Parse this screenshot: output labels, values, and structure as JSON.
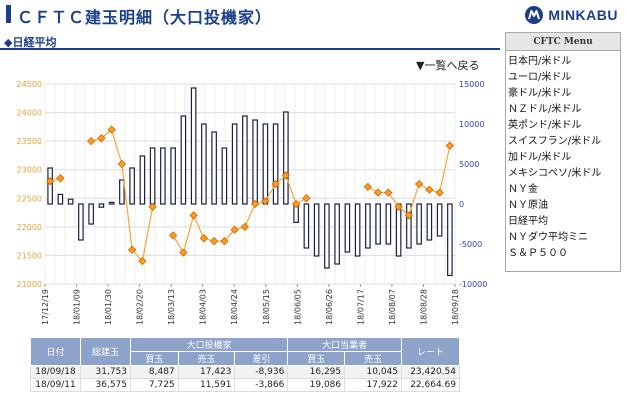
{
  "header": {
    "title": "ＣＦＴＣ建玉明細（大口投機家）",
    "logo_text": "MINKABU"
  },
  "section": {
    "label": "◆日経平均"
  },
  "list_link": "▼一覧へ戻る",
  "menu": {
    "title": "CFTC Menu",
    "items": [
      "日本円/米ドル",
      "ユーロ/米ドル",
      "豪ドル/米ドル",
      "ＮＺドル/米ドル",
      "英ポンド/米ドル",
      "スイスフラン/米ドル",
      "加ドル/米ドル",
      "メキシコペソ/米ドル",
      "ＮＹ金",
      "ＮＹ原油",
      "日経平均",
      "ＮＹダウ平均ミニ",
      "Ｓ＆Ｐ５００"
    ]
  },
  "colors": {
    "brand": "#1b3f8b",
    "left_axis": "#e6a23c",
    "right_axis": "#2a3fbf",
    "line": "#f2a73b",
    "bar_fill": "#ffffff",
    "bar_stroke": "#1a2040",
    "table_header": "#8ea3c9"
  },
  "chart_data": {
    "type": "bar",
    "x_tick_labels": [
      "17/12/19",
      "18/01/09",
      "18/01/30",
      "18/02/20",
      "18/03/13",
      "18/04/03",
      "18/04/24",
      "18/05/15",
      "18/06/05",
      "18/06/26",
      "18/07/17",
      "18/08/07",
      "18/08/28",
      "18/09/18"
    ],
    "series": [
      {
        "type": "bar",
        "axis": "right",
        "values": [
          4500,
          1200,
          600,
          -4500,
          -2500,
          -400,
          200,
          3000,
          4500,
          6000,
          7000,
          7000,
          7000,
          11000,
          14500,
          10000,
          9000,
          7000,
          10000,
          11000,
          10500,
          10000,
          10000,
          11500,
          -2300,
          -5500,
          -6500,
          -8000,
          -7500,
          -6000,
          -6500,
          -5500,
          -5000,
          -5000,
          -6500,
          -5500,
          -5000,
          -4500,
          -4000,
          -8936
        ]
      },
      {
        "type": "line",
        "axis": "left",
        "values": [
          22800,
          22850,
          null,
          null,
          23500,
          23550,
          23700,
          23100,
          21600,
          21400,
          22350,
          null,
          21850,
          21550,
          22200,
          21800,
          21750,
          21750,
          21950,
          22000,
          22400,
          22450,
          22750,
          22900,
          22400,
          22500,
          null,
          null,
          null,
          null,
          null,
          22700,
          22600,
          22600,
          22350,
          22200,
          22750,
          22650,
          22600,
          23420.54
        ]
      }
    ],
    "left_axis": {
      "min": 21000,
      "max": 24500,
      "ticks": [
        "21000",
        "21500",
        "22000",
        "22500",
        "23000",
        "23500",
        "24000",
        "24500"
      ]
    },
    "right_axis": {
      "min": -10000,
      "max": 15000,
      "ticks": [
        "-10000",
        "-5000",
        "0",
        "5000",
        "10000",
        "15000"
      ]
    },
    "grid": true
  },
  "table": {
    "headers_top": [
      "日付",
      "総建玉",
      "大口投機家",
      "大口当業者",
      "レート"
    ],
    "headers_sub": [
      "買玉",
      "売玉",
      "差引",
      "買玉",
      "売玉"
    ],
    "rows": [
      [
        "18/09/18",
        "31,753",
        "8,487",
        "17,423",
        "-8,936",
        "16,295",
        "10,045",
        "23,420.54"
      ],
      [
        "18/09/11",
        "36,575",
        "7,725",
        "11,591",
        "-3,866",
        "19,086",
        "17,922",
        "22,664.69"
      ]
    ]
  }
}
